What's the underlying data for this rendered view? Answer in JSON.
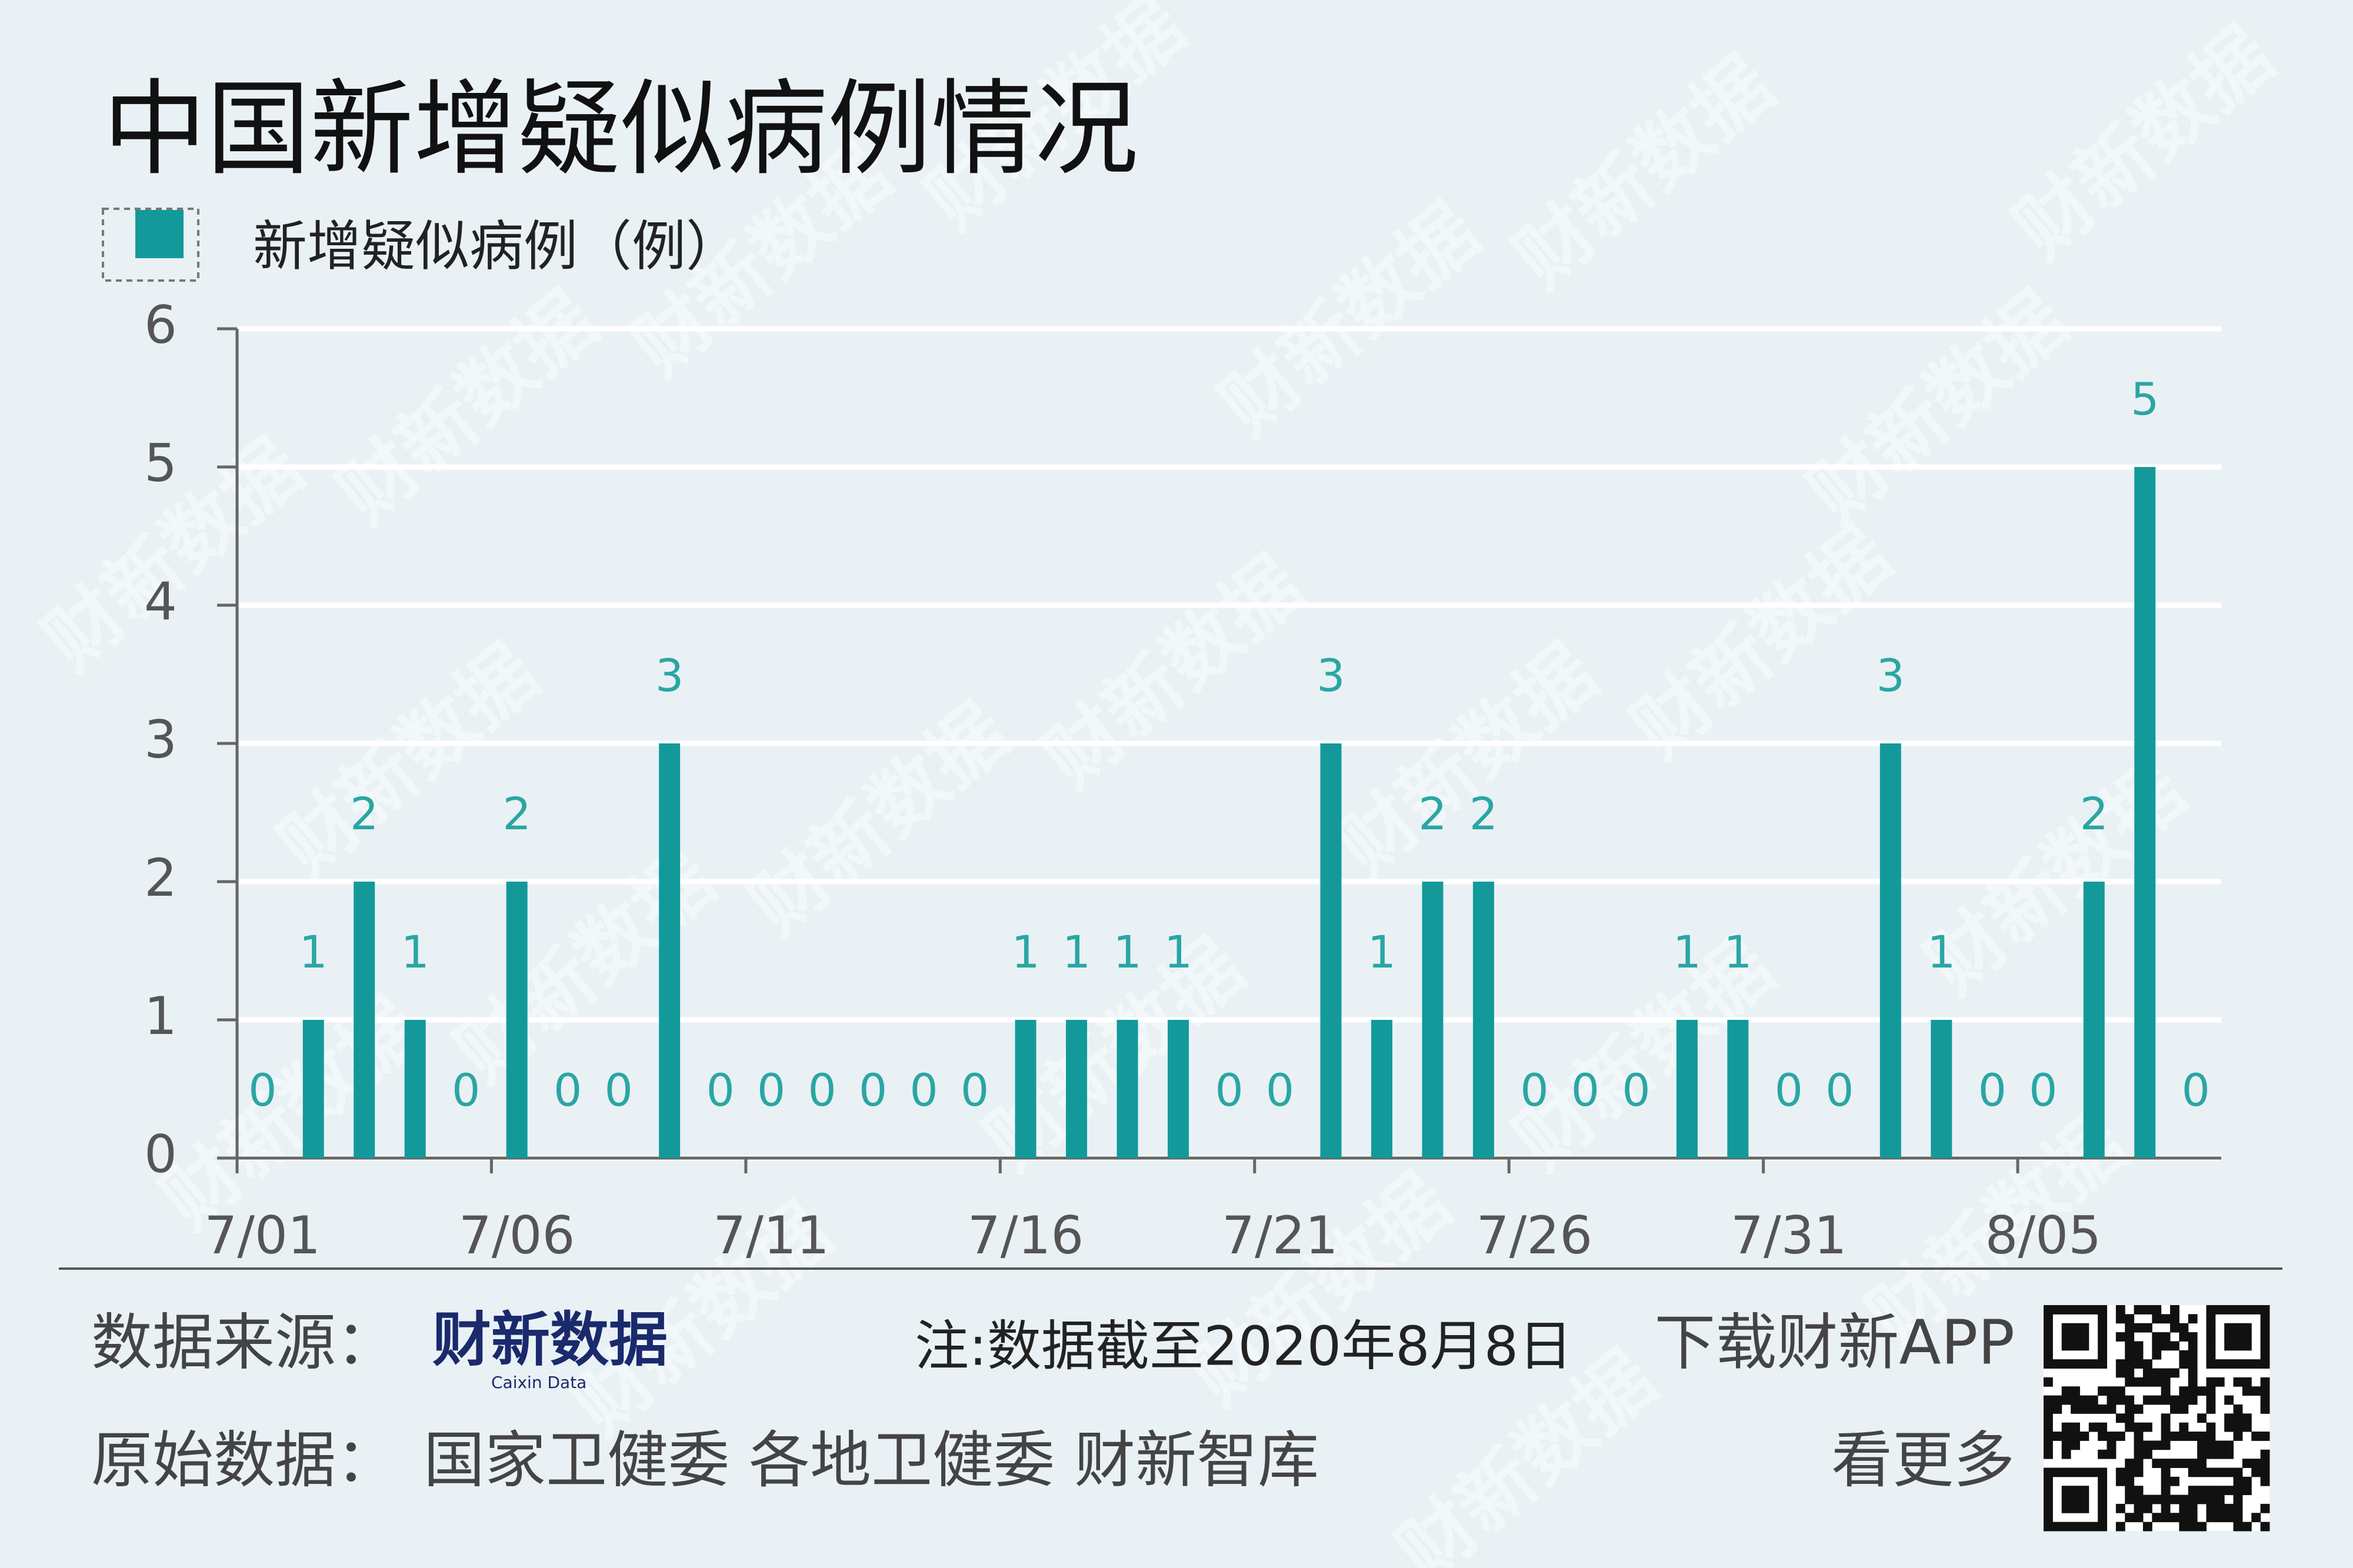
{
  "chart_data": {
    "type": "bar",
    "title": "中国新增疑似病例情况",
    "categories": [
      "7/01",
      null,
      null,
      null,
      null,
      "7/06",
      null,
      null,
      null,
      null,
      "7/11",
      null,
      null,
      null,
      null,
      "7/16",
      null,
      null,
      null,
      null,
      "7/21",
      null,
      null,
      null,
      null,
      "7/26",
      null,
      null,
      null,
      null,
      "7/31",
      null,
      null,
      null,
      null,
      "8/05",
      null,
      null,
      null
    ],
    "series": [
      {
        "name": "新增疑似病例（例）",
        "color": "#14999a",
        "values": [
          0,
          1,
          2,
          1,
          0,
          2,
          0,
          0,
          3,
          0,
          0,
          0,
          0,
          0,
          0,
          1,
          1,
          1,
          1,
          0,
          0,
          3,
          1,
          2,
          2,
          0,
          0,
          0,
          1,
          1,
          0,
          0,
          3,
          1,
          0,
          0,
          2,
          5,
          0
        ]
      }
    ],
    "ylim": [
      0,
      6
    ],
    "yticks": [
      0,
      1,
      2,
      3,
      4,
      5,
      6
    ],
    "grid": true
  },
  "footer": {
    "source_label": "数据来源：",
    "source_logo": "财新数据",
    "source_logo_en": "Caixin Data",
    "note": "注:数据截至2020年8月8日",
    "app": "下载财新APP",
    "app_more": "看更多",
    "origin_label": "原始数据：",
    "origin": "国家卫健委 各地卫健委 财新智库"
  },
  "watermark": "财新数据"
}
